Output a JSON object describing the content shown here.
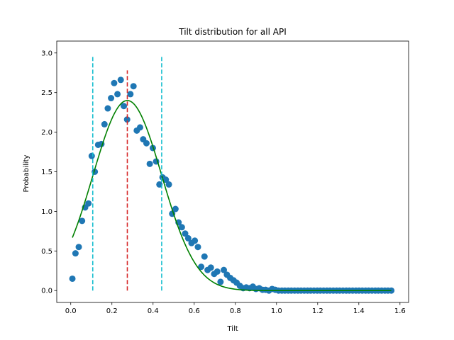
{
  "chart_data": {
    "type": "scatter",
    "title": "Tilt distribution for all API",
    "xlabel": "Tilt",
    "ylabel": "Probability",
    "xlim": [
      -0.068,
      1.642
    ],
    "ylim": [
      -0.15,
      3.15
    ],
    "xticks": [
      0.0,
      0.2,
      0.4,
      0.6,
      0.8,
      1.0,
      1.2,
      1.4,
      1.6
    ],
    "xtick_labels": [
      "0.0",
      "0.2",
      "0.4",
      "0.6",
      "0.8",
      "1.0",
      "1.2",
      "1.4",
      "1.6"
    ],
    "yticks": [
      0.0,
      0.5,
      1.0,
      1.5,
      2.0,
      2.5,
      3.0
    ],
    "ytick_labels": [
      "0.0",
      "0.5",
      "1.0",
      "1.5",
      "2.0",
      "2.5",
      "3.0"
    ],
    "grid": false,
    "legend": "none",
    "colors": {
      "points": "#1f77b4",
      "fit": "#008000",
      "mean_line": "#d62728",
      "bound_lines": "#17becf"
    },
    "series": [
      {
        "kind": "scatter",
        "x": [
          0.008,
          0.023,
          0.039,
          0.055,
          0.07,
          0.086,
          0.102,
          0.117,
          0.133,
          0.149,
          0.164,
          0.18,
          0.196,
          0.211,
          0.227,
          0.243,
          0.258,
          0.274,
          0.29,
          0.305,
          0.321,
          0.337,
          0.352,
          0.368,
          0.384,
          0.399,
          0.415,
          0.431,
          0.446,
          0.462,
          0.477,
          0.493,
          0.509,
          0.524,
          0.54,
          0.556,
          0.571,
          0.587,
          0.603,
          0.618,
          0.634,
          0.65,
          0.665,
          0.681,
          0.697,
          0.712,
          0.728,
          0.744,
          0.759,
          0.775,
          0.791,
          0.806,
          0.822,
          0.838,
          0.853,
          0.869,
          0.885,
          0.9,
          0.916,
          0.932,
          0.947,
          0.963,
          0.979,
          0.994,
          1.01,
          1.026,
          1.041,
          1.057,
          1.072,
          1.088,
          1.104,
          1.119,
          1.135,
          1.151,
          1.166,
          1.182,
          1.198,
          1.213,
          1.229,
          1.245,
          1.26,
          1.276,
          1.292,
          1.307,
          1.323,
          1.339,
          1.354,
          1.37,
          1.386,
          1.401,
          1.417,
          1.433,
          1.448,
          1.464,
          1.48,
          1.495,
          1.511,
          1.527,
          1.542,
          1.558
        ],
        "y": [
          0.15,
          0.47,
          0.55,
          0.88,
          1.05,
          1.1,
          1.7,
          1.5,
          1.84,
          1.85,
          2.1,
          2.3,
          2.43,
          2.62,
          2.48,
          2.66,
          2.33,
          2.16,
          2.48,
          2.58,
          2.02,
          2.06,
          1.91,
          1.86,
          1.6,
          1.8,
          1.63,
          1.34,
          1.43,
          1.4,
          1.34,
          0.97,
          1.03,
          0.86,
          0.8,
          0.72,
          0.66,
          0.6,
          0.63,
          0.55,
          0.3,
          0.43,
          0.26,
          0.29,
          0.21,
          0.24,
          0.11,
          0.26,
          0.2,
          0.16,
          0.13,
          0.1,
          0.06,
          0.03,
          0.04,
          0.03,
          0.05,
          0.02,
          0.03,
          0.01,
          0.01,
          0.0,
          0.02,
          0.01,
          0.0,
          0.0,
          0.0,
          0.0,
          0.0,
          0.0,
          0.0,
          0.0,
          0.0,
          0.0,
          0.0,
          0.0,
          0.0,
          0.0,
          0.0,
          0.0,
          0.0,
          0.0,
          0.0,
          0.0,
          0.0,
          0.0,
          0.0,
          0.0,
          0.0,
          0.0,
          0.0,
          0.0,
          0.0,
          0.0,
          0.0,
          0.0,
          0.0,
          0.0,
          0.0,
          0.0
        ]
      },
      {
        "kind": "line",
        "curve": "gaussian",
        "mean": 0.275,
        "std": 0.167,
        "peak": 2.4,
        "x_range": [
          0.008,
          1.558
        ]
      }
    ],
    "vlines": [
      {
        "x": 0.275,
        "y_range": [
          0.0,
          2.78
        ],
        "color_key": "mean_line",
        "style": "dashed"
      },
      {
        "x": 0.107,
        "y_range": [
          0.0,
          2.95
        ],
        "color_key": "bound_lines",
        "style": "dashed"
      },
      {
        "x": 0.442,
        "y_range": [
          0.0,
          2.95
        ],
        "color_key": "bound_lines",
        "style": "dashed"
      }
    ]
  }
}
